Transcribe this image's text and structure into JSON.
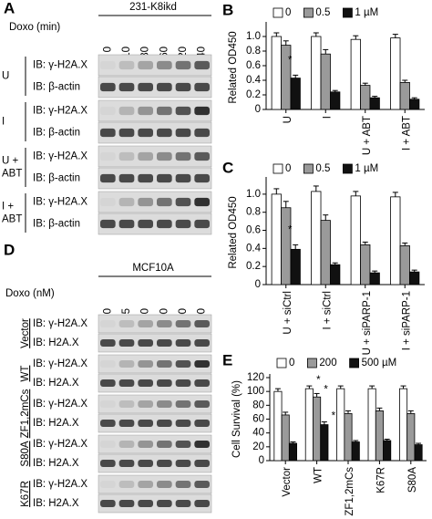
{
  "blot_a": {
    "label": "A",
    "cell_line": "231-K8ikd",
    "treatment": "Doxo (min)",
    "lanes": [
      "0",
      "10",
      "30",
      "60",
      "120",
      "240"
    ],
    "groups": [
      {
        "name": [
          "U"
        ],
        "rows": [
          "IB: γ-H2A.X",
          "IB: β-actin"
        ]
      },
      {
        "name": [
          "I"
        ],
        "rows": [
          "IB: γ-H2A.X",
          "IB: β-actin"
        ]
      },
      {
        "name": [
          "U +",
          "ABT"
        ],
        "rows": [
          "IB: γ-H2A.X",
          "IB: β-actin"
        ]
      },
      {
        "name": [
          "I +",
          "ABT"
        ],
        "rows": [
          "IB: γ-H2A.X",
          "IB: β-actin"
        ]
      }
    ]
  },
  "blot_d": {
    "label": "D",
    "cell_line": "MCF10A",
    "treatment": "Doxo (nM)",
    "lanes": [
      "0",
      "25",
      "50",
      "100",
      "200",
      "500"
    ],
    "groups": [
      {
        "name": [
          "Vector"
        ],
        "rows": [
          "IB: γ-H2A.X",
          "IB: H2A.X"
        ]
      },
      {
        "name": [
          "WT"
        ],
        "rows": [
          "IB: γ-H2A.X",
          "IB: H2A.X"
        ]
      },
      {
        "name": [
          "ZF1,2mCs"
        ],
        "rows": [
          "IB: γ-H2A.X",
          "IB: H2A.X"
        ]
      },
      {
        "name": [
          "S80A"
        ],
        "rows": [
          "IB: γ-H2A.X",
          "IB: H2A.X"
        ]
      },
      {
        "name": [
          "K67R"
        ],
        "rows": [
          "IB: γ-H2A.X",
          "IB: H2A.X"
        ]
      }
    ]
  },
  "chart_data": [
    {
      "type": "bar",
      "panel": "B",
      "ylabel": "Related OD450",
      "categories": [
        "U",
        "I",
        "U + ABT",
        "I + ABT"
      ],
      "series": [
        {
          "name": "0",
          "color": "#ffffff",
          "values": [
            1.0,
            1.0,
            0.96,
            0.98
          ],
          "errors": [
            0.05,
            0.05,
            0.05,
            0.05
          ]
        },
        {
          "name": "0.5",
          "color": "#9a9a9a",
          "values": [
            0.88,
            0.76,
            0.33,
            0.37
          ],
          "errors": [
            0.06,
            0.06,
            0.03,
            0.03
          ]
        },
        {
          "name": "1 µM",
          "color": "#111111",
          "values": [
            0.43,
            0.24,
            0.16,
            0.14
          ],
          "errors": [
            0.04,
            0.02,
            0.02,
            0.02
          ]
        }
      ],
      "ylim": [
        0,
        1.15
      ],
      "yticks": [
        0,
        0.2,
        0.4,
        0.6,
        0.8,
        {
          "value": 1,
          "label": "1.0"
        }
      ],
      "annotations": [
        "*"
      ]
    },
    {
      "type": "bar",
      "panel": "C",
      "ylabel": "Related OD450",
      "categories": [
        "U + siCtrl",
        "I + siCtrl",
        "U + siPARP-1",
        "I + siPARP-1"
      ],
      "series": [
        {
          "name": "0",
          "color": "#ffffff",
          "values": [
            1.0,
            1.03,
            0.98,
            0.97
          ],
          "errors": [
            0.06,
            0.06,
            0.05,
            0.05
          ]
        },
        {
          "name": "0.5",
          "color": "#9a9a9a",
          "values": [
            0.85,
            0.71,
            0.44,
            0.43
          ],
          "errors": [
            0.07,
            0.06,
            0.03,
            0.03
          ]
        },
        {
          "name": "1 µM",
          "color": "#111111",
          "values": [
            0.39,
            0.22,
            0.13,
            0.14
          ],
          "errors": [
            0.05,
            0.02,
            0.02,
            0.02
          ]
        }
      ],
      "ylim": [
        0,
        1.15
      ],
      "yticks": [
        0,
        0.2,
        0.4,
        0.6,
        0.8,
        {
          "value": 1,
          "label": "1.0"
        }
      ],
      "annotations": [
        "*"
      ]
    },
    {
      "type": "bar",
      "panel": "E",
      "ylabel": "Cell Survival (%)",
      "categories": [
        "Vector",
        "WT",
        "ZF1,2mCs",
        "K67R",
        "S80A"
      ],
      "series": [
        {
          "name": "0",
          "color": "#ffffff",
          "values": [
            100,
            104,
            104,
            104,
            104
          ],
          "errors": [
            4,
            4,
            4,
            4,
            4
          ]
        },
        {
          "name": "200",
          "color": "#9a9a9a",
          "values": [
            66,
            92,
            68,
            72,
            68
          ],
          "errors": [
            4,
            5,
            4,
            4,
            4
          ]
        },
        {
          "name": "500 µM",
          "color": "#111111",
          "values": [
            25,
            52,
            27,
            29,
            23
          ],
          "errors": [
            2,
            4,
            2,
            2,
            2
          ]
        }
      ],
      "ylim": [
        0,
        120
      ],
      "yticks": [
        0,
        20,
        40,
        60,
        80,
        100,
        120
      ],
      "annotations": [
        "*",
        "*",
        "*"
      ]
    }
  ]
}
